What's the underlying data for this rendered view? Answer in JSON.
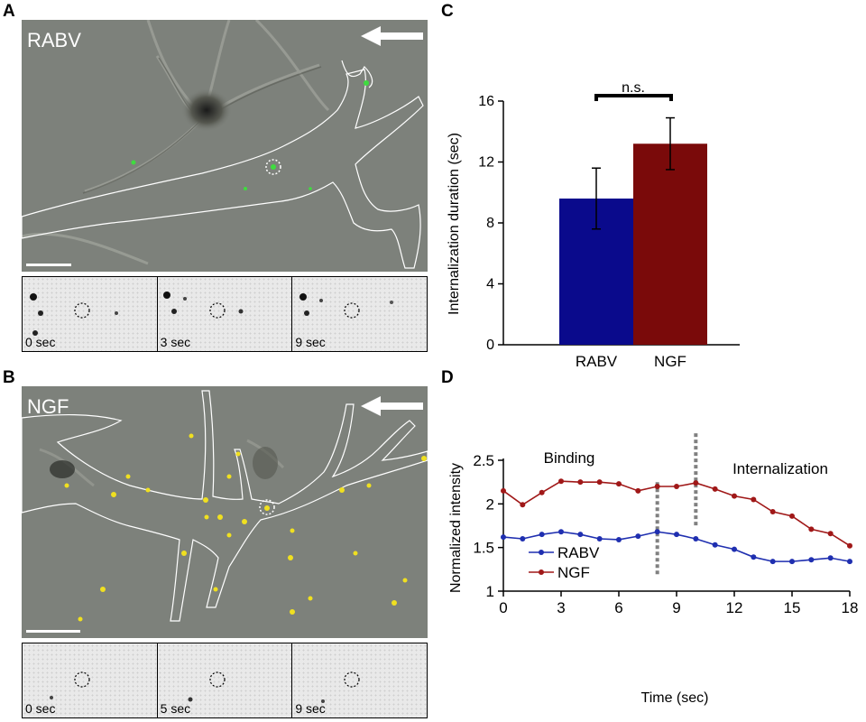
{
  "figure": {
    "panels": {
      "A": {
        "letter": "A",
        "label": "RABV",
        "strip_times": [
          "0 sec",
          "3 sec",
          "9 sec"
        ]
      },
      "B": {
        "letter": "B",
        "label": "NGF",
        "strip_times": [
          "0 sec",
          "5 sec",
          "9 sec"
        ]
      },
      "C": {
        "letter": "C"
      },
      "D": {
        "letter": "D"
      }
    },
    "colors": {
      "rabv": "#0a0a8c",
      "ngf": "#7a0a0a",
      "rabv_line": "#1f2fb0",
      "ngf_line": "#a01818",
      "rabv_particle": "#3fdc3f",
      "ngf_particle": "#f0e020"
    },
    "icons": [
      "arrow-left-icon",
      "scale-bar-icon"
    ]
  },
  "chart_data": [
    {
      "type": "bar",
      "categories": [
        "RABV",
        "NGF"
      ],
      "values": [
        9.6,
        13.2
      ],
      "error": [
        2.0,
        1.7
      ],
      "ylabel": "Internalization duration (sec)",
      "ylim": [
        0,
        16
      ],
      "yticks": [
        "0",
        "4",
        "8",
        "12",
        "16"
      ],
      "annotation": "n.s."
    },
    {
      "type": "line",
      "xlabel": "Time (sec)",
      "ylabel": "Normalized intensity",
      "xlim": [
        0,
        18
      ],
      "ylim": [
        1,
        2.5
      ],
      "xticks": [
        "0",
        "3",
        "6",
        "9",
        "12",
        "15",
        "18"
      ],
      "yticks": [
        "1",
        "1.5",
        "2",
        "2.5"
      ],
      "annotations": [
        "Binding",
        "Internalization"
      ],
      "legend_position": "bottom-left",
      "series": [
        {
          "name": "RABV",
          "x": [
            0,
            1,
            2,
            3,
            4,
            5,
            6,
            7,
            8,
            9,
            10,
            11,
            12,
            13,
            14,
            15,
            16,
            17,
            18
          ],
          "values": [
            1.62,
            1.6,
            1.65,
            1.68,
            1.65,
            1.6,
            1.59,
            1.63,
            1.68,
            1.65,
            1.6,
            1.53,
            1.48,
            1.39,
            1.34,
            1.34,
            1.36,
            1.38,
            1.34
          ]
        },
        {
          "name": "NGF",
          "x": [
            0,
            1,
            2,
            3,
            4,
            5,
            6,
            7,
            8,
            9,
            10,
            11,
            12,
            13,
            14,
            15,
            16,
            17,
            18
          ],
          "values": [
            2.15,
            1.99,
            2.13,
            2.26,
            2.25,
            2.25,
            2.23,
            2.15,
            2.2,
            2.2,
            2.24,
            2.17,
            2.09,
            2.05,
            1.91,
            1.86,
            1.71,
            1.66,
            1.52
          ]
        }
      ],
      "markers": [
        {
          "series": "RABV",
          "x": 8
        },
        {
          "series": "NGF",
          "x": 10
        }
      ]
    }
  ]
}
